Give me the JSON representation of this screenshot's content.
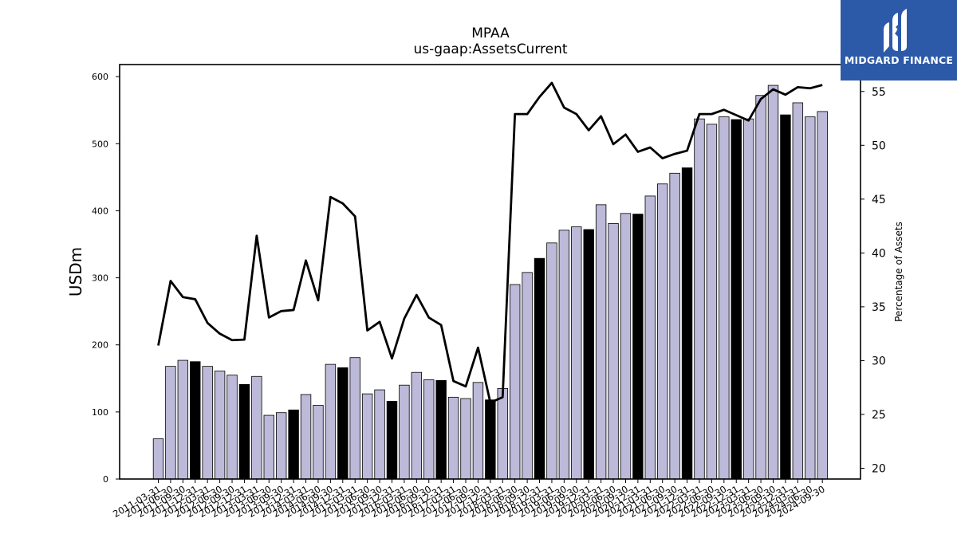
{
  "chart_data": {
    "type": "bar",
    "title": "MPAA",
    "subtitle": "us-gaap:AssetsCurrent",
    "ylabel": "USDm",
    "y2label": "Percentage of Assets",
    "ylim": [
      0,
      618
    ],
    "y2lim": [
      19.0,
      57.5
    ],
    "yticks": [
      0,
      100,
      200,
      300,
      400,
      500,
      600
    ],
    "y2ticks": [
      20,
      25,
      30,
      35,
      40,
      45,
      50,
      55
    ],
    "grid": false,
    "categories": [
      "2011-03-31",
      "2011-06-30",
      "2011-09-30",
      "2011-12-31",
      "2012-03-31",
      "2012-06-30",
      "2012-09-30",
      "2012-12-31",
      "2013-03-31",
      "2013-06-30",
      "2013-09-30",
      "2013-12-31",
      "2014-03-31",
      "2014-06-30",
      "2014-09-30",
      "2014-12-31",
      "2015-03-31",
      "2015-06-30",
      "2015-09-30",
      "2015-12-31",
      "2016-03-31",
      "2016-06-30",
      "2016-09-30",
      "2016-12-31",
      "2017-03-31",
      "2017-06-30",
      "2017-09-30",
      "2017-12-31",
      "2018-03-31",
      "2018-06-30",
      "2018-09-30",
      "2018-12-31",
      "2019-03-31",
      "2019-06-30",
      "2019-09-30",
      "2019-12-31",
      "2020-03-31",
      "2020-06-30",
      "2020-09-30",
      "2020-12-31",
      "2021-03-31",
      "2021-06-30",
      "2021-09-30",
      "2021-12-31",
      "2022-03-31",
      "2022-06-30",
      "2022-09-30",
      "2022-12-31",
      "2023-03-31",
      "2023-06-30",
      "2023-09-30",
      "2023-12-31",
      "2024-03-31",
      "2024-06-30",
      "2024-09-30"
    ],
    "series": [
      {
        "name": "AssetsCurrent",
        "kind": "bar",
        "axis": "left",
        "values": [
          60,
          168,
          177,
          175,
          168,
          161,
          155,
          141,
          153,
          95,
          99,
          103,
          126,
          110,
          171,
          166,
          181,
          127,
          133,
          116,
          140,
          159,
          148,
          147,
          122,
          120,
          144,
          118,
          135,
          290,
          308,
          329,
          352,
          371,
          376,
          372,
          409,
          381,
          396,
          395,
          422,
          440,
          456,
          464,
          537,
          529,
          540,
          536,
          537,
          572,
          587,
          543,
          561,
          540,
          548
        ],
        "highlight_indices": [
          3,
          7,
          11,
          15,
          19,
          23,
          27,
          31,
          35,
          39,
          43,
          47,
          51
        ]
      },
      {
        "name": "Percentage of Assets",
        "kind": "line",
        "axis": "right",
        "values": [
          31.4,
          37.4,
          35.9,
          35.7,
          33.5,
          32.5,
          31.9,
          31.95,
          41.6,
          34.0,
          34.6,
          34.7,
          39.3,
          35.6,
          45.2,
          44.6,
          43.4,
          32.8,
          33.6,
          30.2,
          33.9,
          36.1,
          34.0,
          33.3,
          28.1,
          27.6,
          31.2,
          26.1,
          26.6,
          52.9,
          52.9,
          54.5,
          55.8,
          53.5,
          52.9,
          51.4,
          52.7,
          50.1,
          51.0,
          49.4,
          49.8,
          48.8,
          49.2,
          49.5,
          52.9,
          52.9,
          53.3,
          52.8,
          52.3,
          54.3,
          55.2,
          54.7,
          55.4,
          55.3,
          55.6
        ]
      }
    ],
    "bar_color": "#bdb9d9",
    "highlight_color": "#000000",
    "line_color": "#000000"
  },
  "logo": {
    "text": "MIDGARD FINANCE",
    "background": "#2c5aa8",
    "text_color": "#ffffff"
  }
}
